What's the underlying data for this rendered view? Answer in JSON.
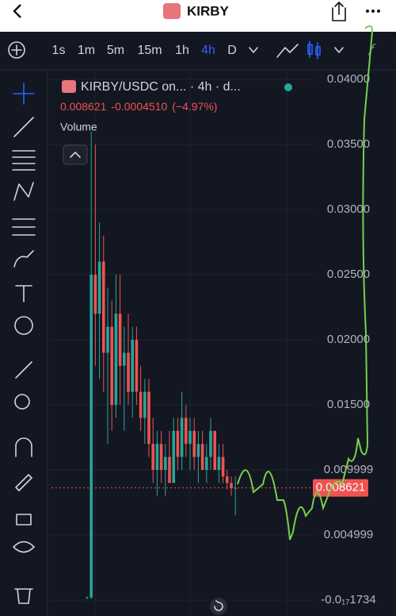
{
  "header": {
    "title": "KIRBY"
  },
  "toolbar": {
    "intervals": [
      "1s",
      "1m",
      "5m",
      "15m",
      "1h",
      "4h",
      "D"
    ],
    "active_interval": "4h"
  },
  "chart_data": {
    "type": "candlestick",
    "title": "KIRBY/USDC on... · 4h · d...",
    "last_price": 0.008621,
    "change": "-0.0004510",
    "change_pct": "(−4.97%)",
    "volume_label": "Volume",
    "up_color": "#26a69a",
    "down_color": "#ef5350",
    "open": [
      0.0002,
      0.0002,
      0.025,
      0.022,
      0.026,
      0.019,
      0.021,
      0.015,
      0.022,
      0.018,
      0.019,
      0.016,
      0.02,
      0.016,
      0.014,
      0.016,
      0.012,
      0.01,
      0.012,
      0.01,
      0.011,
      0.009,
      0.013,
      0.011,
      0.014,
      0.012,
      0.013,
      0.011,
      0.012,
      0.01,
      0.011,
      0.013,
      0.01,
      0.011,
      0.0095,
      0.009,
      0.0086
    ],
    "high": [
      0.0003,
      0.036,
      0.035,
      0.029,
      0.028,
      0.024,
      0.023,
      0.025,
      0.025,
      0.021,
      0.022,
      0.021,
      0.021,
      0.018,
      0.017,
      0.017,
      0.014,
      0.013,
      0.013,
      0.012,
      0.013,
      0.014,
      0.014,
      0.016,
      0.015,
      0.014,
      0.014,
      0.013,
      0.013,
      0.012,
      0.014,
      0.013,
      0.012,
      0.012,
      0.01,
      0.0095,
      0.0095
    ],
    "low": [
      0.0001,
      0.0001,
      0.018,
      0.017,
      0.016,
      0.012,
      0.013,
      0.014,
      0.015,
      0.013,
      0.015,
      0.014,
      0.015,
      0.013,
      0.012,
      0.011,
      0.009,
      0.008,
      0.009,
      0.008,
      0.009,
      0.009,
      0.01,
      0.01,
      0.011,
      0.01,
      0.01,
      0.009,
      0.01,
      0.009,
      0.01,
      0.01,
      0.009,
      0.009,
      0.0085,
      0.008,
      0.0065
    ],
    "close": [
      0.0002,
      0.025,
      0.022,
      0.026,
      0.019,
      0.021,
      0.015,
      0.022,
      0.018,
      0.019,
      0.016,
      0.02,
      0.016,
      0.014,
      0.016,
      0.012,
      0.01,
      0.012,
      0.01,
      0.011,
      0.009,
      0.013,
      0.011,
      0.014,
      0.012,
      0.013,
      0.011,
      0.012,
      0.01,
      0.011,
      0.013,
      0.01,
      0.011,
      0.0095,
      0.009,
      0.0086,
      0.008621
    ],
    "ylim": [
      -0.00122,
      0.04061
    ],
    "yticks": [
      {
        "value": 0.04,
        "label": "0.04000"
      },
      {
        "value": 0.035,
        "label": "0.03500"
      },
      {
        "value": 0.03,
        "label": "0.03000"
      },
      {
        "value": 0.025,
        "label": "0.02500"
      },
      {
        "value": 0.02,
        "label": "0.02000"
      },
      {
        "value": 0.015,
        "label": "0.01500"
      },
      0.009999,
      0.004999,
      {
        "value": -1.734e-18,
        "label": "-0.0₁₇1734"
      }
    ],
    "grid": true
  }
}
